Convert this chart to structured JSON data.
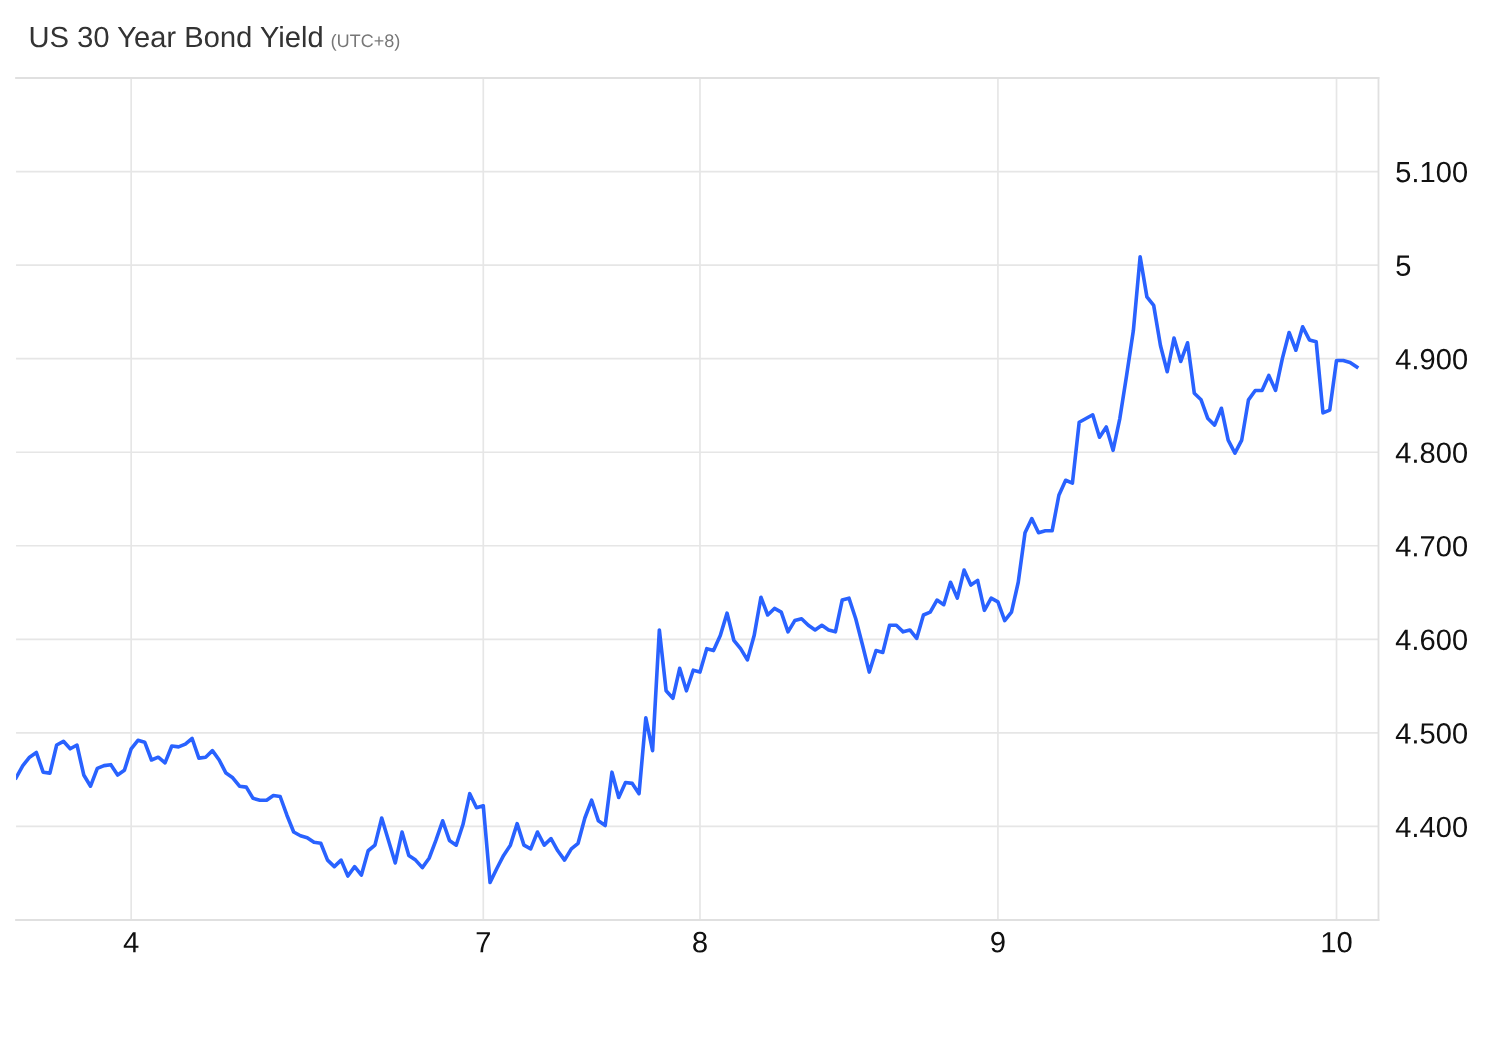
{
  "chart_data": {
    "type": "line",
    "title": "US 30 Year Bond Yield",
    "subtitle": "(UTC+8)",
    "categories": [
      null,
      null,
      null,
      null,
      null,
      null,
      null,
      null,
      null,
      null,
      null,
      null,
      null,
      null,
      null,
      null,
      null,
      "4",
      null,
      null,
      null,
      null,
      null,
      null,
      null,
      null,
      null,
      null,
      null,
      null,
      null,
      null,
      null,
      null,
      null,
      null,
      null,
      null,
      null,
      null,
      null,
      null,
      null,
      null,
      null,
      null,
      null,
      null,
      null,
      null,
      null,
      null,
      null,
      null,
      null,
      null,
      null,
      null,
      null,
      null,
      null,
      null,
      null,
      null,
      null,
      null,
      null,
      null,
      null,
      "7",
      null,
      null,
      null,
      null,
      null,
      null,
      null,
      null,
      null,
      null,
      null,
      null,
      null,
      null,
      null,
      null,
      null,
      null,
      null,
      null,
      null,
      null,
      null,
      null,
      null,
      null,
      null,
      null,
      null,
      null,
      null,
      "8",
      null,
      null,
      null,
      null,
      null,
      null,
      null,
      null,
      null,
      null,
      null,
      null,
      null,
      null,
      null,
      null,
      null,
      null,
      null,
      null,
      null,
      null,
      null,
      null,
      null,
      null,
      null,
      null,
      null,
      null,
      null,
      null,
      null,
      null,
      null,
      null,
      null,
      null,
      null,
      null,
      null,
      null,
      null,
      "9",
      null,
      null,
      null,
      null,
      null,
      null,
      null,
      null,
      null,
      null,
      null,
      null,
      null,
      null,
      null,
      null,
      null,
      null,
      null,
      null,
      null,
      null,
      null,
      null,
      null,
      null,
      null,
      null,
      null,
      null,
      null,
      null,
      null,
      null,
      null,
      null,
      null,
      null,
      null,
      null,
      null,
      null,
      null,
      null,
      null,
      null,
      null,
      null,
      null,
      "10",
      null,
      null,
      null
    ],
    "ylim": [
      4.3,
      5.2
    ],
    "yticks": [
      {
        "value": 4.4,
        "label": "4.400"
      },
      {
        "value": 4.5,
        "label": "4.500"
      },
      {
        "value": 4.6,
        "label": "4.600"
      },
      {
        "value": 4.7,
        "label": "4.700"
      },
      {
        "value": 4.8,
        "label": "4.800"
      },
      {
        "value": 4.9,
        "label": "4.900"
      },
      5,
      {
        "value": 5.1,
        "label": "5.100"
      }
    ],
    "grid": true,
    "marker": "none",
    "line_style": "solid",
    "series": [
      {
        "color": "#2962ff",
        "values": [
          4.452,
          4.465,
          4.474,
          4.479,
          4.458,
          4.457,
          4.487,
          4.491,
          4.483,
          4.487,
          4.455,
          4.443,
          4.462,
          4.465,
          4.466,
          4.455,
          4.46,
          4.483,
          4.492,
          4.49,
          4.471,
          4.474,
          4.468,
          4.486,
          4.485,
          4.488,
          4.494,
          4.473,
          4.474,
          4.481,
          4.471,
          4.457,
          4.452,
          4.443,
          4.442,
          4.43,
          4.428,
          4.428,
          4.433,
          4.432,
          4.412,
          4.394,
          4.39,
          4.388,
          4.383,
          4.382,
          4.364,
          4.357,
          4.364,
          4.347,
          4.357,
          4.348,
          4.374,
          4.38,
          4.409,
          4.385,
          4.361,
          4.394,
          4.369,
          4.364,
          4.356,
          4.366,
          4.385,
          4.406,
          4.385,
          4.38,
          4.402,
          4.435,
          4.42,
          4.422,
          4.34,
          4.355,
          4.369,
          4.38,
          4.403,
          4.38,
          4.376,
          4.394,
          4.38,
          4.387,
          4.374,
          4.364,
          4.376,
          4.382,
          4.409,
          4.428,
          4.406,
          4.401,
          4.458,
          4.431,
          4.447,
          4.446,
          4.435,
          4.516,
          4.481,
          4.61,
          4.545,
          4.537,
          4.569,
          4.545,
          4.567,
          4.565,
          4.59,
          4.588,
          4.604,
          4.628,
          4.599,
          4.59,
          4.578,
          4.604,
          4.645,
          4.626,
          4.633,
          4.629,
          4.608,
          4.62,
          4.622,
          4.615,
          4.61,
          4.615,
          4.61,
          4.608,
          4.642,
          4.644,
          4.622,
          4.594,
          4.565,
          4.588,
          4.586,
          4.615,
          4.615,
          4.608,
          4.61,
          4.601,
          4.626,
          4.629,
          4.642,
          4.637,
          4.661,
          4.644,
          4.674,
          4.658,
          4.663,
          4.631,
          4.644,
          4.64,
          4.62,
          4.629,
          4.661,
          4.714,
          4.729,
          4.714,
          4.716,
          4.716,
          4.754,
          4.77,
          4.767,
          4.832,
          4.836,
          4.84,
          4.816,
          4.827,
          4.802,
          4.836,
          4.882,
          4.93,
          5.009,
          4.966,
          4.957,
          4.914,
          4.886,
          4.922,
          4.897,
          4.917,
          4.863,
          4.856,
          4.836,
          4.829,
          4.847,
          4.813,
          4.799,
          4.813,
          4.856,
          4.866,
          4.866,
          4.882,
          4.866,
          4.9,
          4.928,
          4.909,
          4.934,
          4.92,
          4.918,
          4.842,
          4.845,
          4.898,
          4.898,
          4.896,
          4.891
        ]
      }
    ]
  }
}
